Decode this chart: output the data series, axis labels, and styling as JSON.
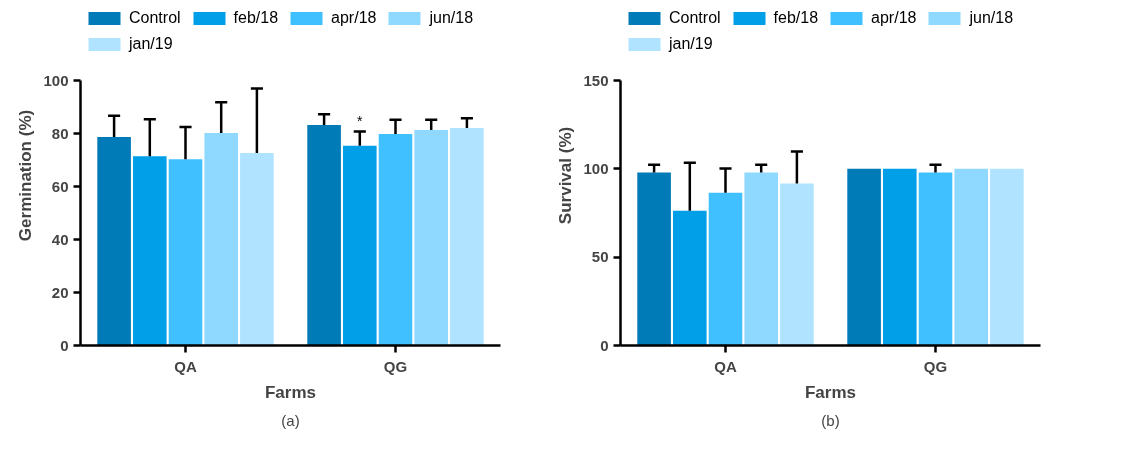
{
  "chart_data": [
    {
      "type": "bar",
      "xlabel": "Farms",
      "ylabel": "Germination (%)",
      "categories": [
        "QA",
        "QG"
      ],
      "ylim": [
        0,
        100
      ],
      "yticks": [
        0,
        20,
        40,
        60,
        80,
        100
      ],
      "legend": "top",
      "grid": false,
      "series": [
        {
          "name": "Control",
          "color": "#007bb8",
          "values": [
            78.7,
            83.2
          ],
          "errors": [
            [
              78.7,
              86.7
            ],
            [
              83.2,
              87.3
            ]
          ]
        },
        {
          "name": "feb/18",
          "color": "#009fe8",
          "values": [
            71.4,
            75.4
          ],
          "errors": [
            [
              71.4,
              85.4
            ],
            [
              75.4,
              80.8
            ]
          ],
          "value_labels": [
            null,
            "*"
          ]
        },
        {
          "name": "apr/18",
          "color": "#40c0ff",
          "values": [
            70.3,
            79.8
          ],
          "errors": [
            [
              70.3,
              82.5
            ],
            [
              79.8,
              85.2
            ]
          ]
        },
        {
          "name": "jun/18",
          "color": "#8fd8ff",
          "values": [
            80.2,
            81.3
          ],
          "errors": [
            [
              80.2,
              91.8
            ],
            [
              81.3,
              85.2
            ]
          ]
        },
        {
          "name": "jan/19",
          "color": "#b0e3ff",
          "values": [
            72.6,
            82.1
          ],
          "errors": [
            [
              72.6,
              97.0
            ],
            [
              82.1,
              85.8
            ]
          ]
        }
      ],
      "annotations": [
        "(a)"
      ]
    },
    {
      "type": "bar",
      "xlabel": "Farms",
      "ylabel": "Survival (%)",
      "categories": [
        "QA",
        "QG"
      ],
      "ylim": [
        0,
        150
      ],
      "yticks": [
        0,
        50,
        100,
        150
      ],
      "legend": "top",
      "grid": false,
      "series": [
        {
          "name": "Control",
          "color": "#007bb8",
          "values": [
            97.9,
            100
          ],
          "errors": [
            [
              97.9,
              102.3
            ],
            null
          ]
        },
        {
          "name": "feb/18",
          "color": "#009fe8",
          "values": [
            76.3,
            100
          ],
          "errors": [
            [
              76.3,
              103.4
            ],
            null
          ]
        },
        {
          "name": "apr/18",
          "color": "#40c0ff",
          "values": [
            86.5,
            97.9
          ],
          "errors": [
            [
              86.5,
              100.2
            ],
            [
              97.9,
              102.3
            ]
          ]
        },
        {
          "name": "jun/18",
          "color": "#8fd8ff",
          "values": [
            97.9,
            100
          ],
          "errors": [
            [
              97.9,
              102.3
            ],
            null
          ]
        },
        {
          "name": "jan/19",
          "color": "#b0e3ff",
          "values": [
            91.7,
            100
          ],
          "errors": [
            [
              91.7,
              109.8
            ],
            null
          ]
        }
      ],
      "annotations": [
        "(b)"
      ]
    }
  ]
}
